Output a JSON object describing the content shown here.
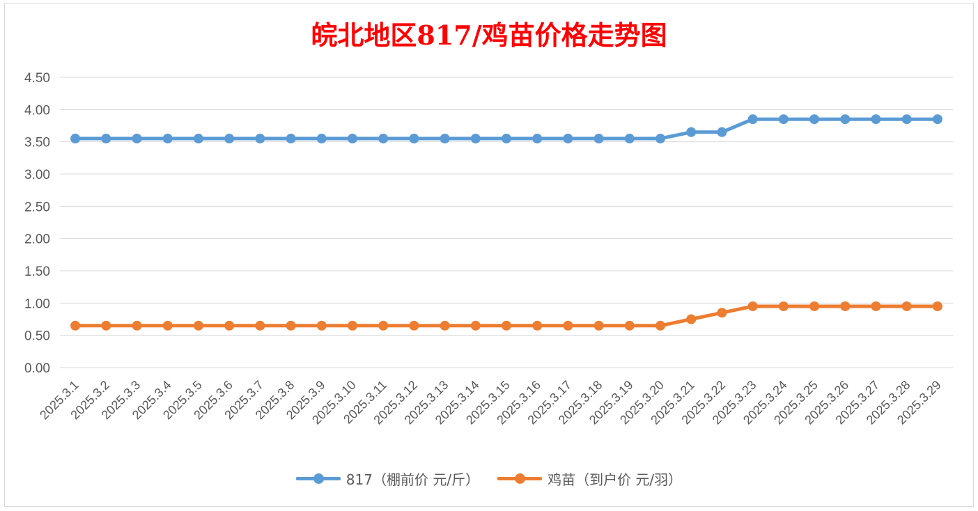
{
  "chart_data": {
    "type": "line",
    "title": "皖北地区817/鸡苗价格走势图",
    "title_color": "#ff0000",
    "categories": [
      "2025.3.1",
      "2025.3.2",
      "2025.3.3",
      "2025.3.4",
      "2025.3.5",
      "2025.3.6",
      "2025.3.7",
      "2025.3.8",
      "2025.3.9",
      "2025.3.10",
      "2025.3.11",
      "2025.3.12",
      "2025.3.13",
      "2025.3.14",
      "2025.3.15",
      "2025.3.16",
      "2025.3.17",
      "2025.3.18",
      "2025.3.19",
      "2025.3.20",
      "2025.3.21",
      "2025.3.22",
      "2025.3.23",
      "2025.3.24",
      "2025.3.25",
      "2025.3.26",
      "2025.3.27",
      "2025.3.28",
      "2025.3.29"
    ],
    "series": [
      {
        "name": "817（棚前价 元/斤）",
        "color": "#5b9bd5",
        "values": [
          3.55,
          3.55,
          3.55,
          3.55,
          3.55,
          3.55,
          3.55,
          3.55,
          3.55,
          3.55,
          3.55,
          3.55,
          3.55,
          3.55,
          3.55,
          3.55,
          3.55,
          3.55,
          3.55,
          3.55,
          3.65,
          3.65,
          3.85,
          3.85,
          3.85,
          3.85,
          3.85,
          3.85,
          3.85
        ]
      },
      {
        "name": "鸡苗（到户价 元/羽）",
        "color": "#ed7d31",
        "values": [
          0.65,
          0.65,
          0.65,
          0.65,
          0.65,
          0.65,
          0.65,
          0.65,
          0.65,
          0.65,
          0.65,
          0.65,
          0.65,
          0.65,
          0.65,
          0.65,
          0.65,
          0.65,
          0.65,
          0.65,
          0.75,
          0.85,
          0.95,
          0.95,
          0.95,
          0.95,
          0.95,
          0.95,
          0.95
        ]
      }
    ],
    "ylim": [
      0,
      4.5
    ],
    "yticks": [
      "0.00",
      "0.50",
      "1.00",
      "1.50",
      "2.00",
      "2.50",
      "3.00",
      "3.50",
      "4.00",
      "4.50"
    ],
    "grid": true,
    "legend_position": "bottom"
  }
}
